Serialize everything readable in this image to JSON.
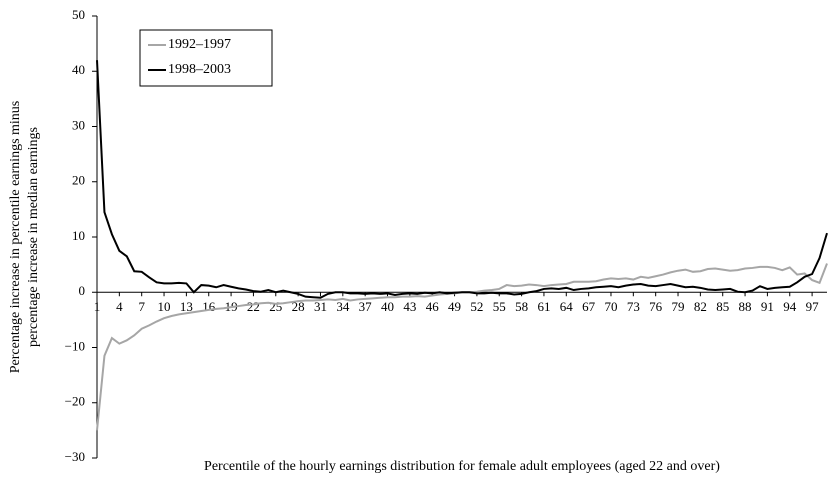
{
  "chart_data": {
    "type": "line",
    "ylabel": [
      "Percentage increase in percentile earnings minus",
      "percentage increase in median earnings"
    ],
    "xlabel": "Percentile of the hourly earnings distribution for female adult employees (aged 22 and over)",
    "x": [
      1,
      2,
      3,
      4,
      5,
      6,
      7,
      8,
      9,
      10,
      11,
      12,
      13,
      14,
      15,
      16,
      17,
      18,
      19,
      20,
      21,
      22,
      23,
      24,
      25,
      26,
      27,
      28,
      29,
      30,
      31,
      32,
      33,
      34,
      35,
      36,
      37,
      38,
      39,
      40,
      41,
      42,
      43,
      44,
      45,
      46,
      47,
      48,
      49,
      50,
      51,
      52,
      53,
      54,
      55,
      56,
      57,
      58,
      59,
      60,
      61,
      62,
      63,
      64,
      65,
      66,
      67,
      68,
      69,
      70,
      71,
      72,
      73,
      74,
      75,
      76,
      77,
      78,
      79,
      80,
      81,
      82,
      83,
      84,
      85,
      86,
      87,
      88,
      89,
      90,
      91,
      92,
      93,
      94,
      95,
      96,
      97,
      98,
      99
    ],
    "xlim": [
      1,
      99
    ],
    "xticks": [
      1,
      4,
      7,
      10,
      13,
      16,
      19,
      22,
      25,
      28,
      31,
      34,
      37,
      40,
      43,
      46,
      49,
      52,
      55,
      58,
      61,
      64,
      67,
      70,
      73,
      76,
      79,
      82,
      85,
      88,
      91,
      94,
      97
    ],
    "ylim": [
      -30,
      50
    ],
    "yticks": [
      {
        "value": -30,
        "label": "−30"
      },
      {
        "value": -20,
        "label": "−20"
      },
      {
        "value": -10,
        "label": "−10"
      },
      0,
      10,
      20,
      30,
      40,
      50
    ],
    "legend": "upper left",
    "series": [
      {
        "name": "1992–1997",
        "color": "#a6a6a6",
        "values": [
          -25,
          -11.5,
          -8.3,
          -9.3,
          -8.7,
          -7.8,
          -6.6,
          -6,
          -5.3,
          -4.7,
          -4.3,
          -4,
          -3.8,
          -3.6,
          -3.4,
          -3.2,
          -3,
          -2.9,
          -2.7,
          -2.5,
          -2.3,
          -2.2,
          -2,
          -1.9,
          -2.1,
          -2,
          -1.8,
          -1.6,
          -1.5,
          -1.5,
          -1.4,
          -1.3,
          -1.4,
          -1.2,
          -1.5,
          -1.3,
          -1.2,
          -1.1,
          -1,
          -0.9,
          -0.9,
          -0.8,
          -0.8,
          -0.7,
          -0.8,
          -0.6,
          -0.4,
          -0.3,
          -0.2,
          0,
          0,
          0.1,
          0.3,
          0.4,
          0.6,
          1.3,
          1.1,
          1.2,
          1.4,
          1.3,
          1.1,
          1.3,
          1.4,
          1.5,
          1.9,
          1.9,
          1.9,
          2,
          2.3,
          2.5,
          2.4,
          2.5,
          2.3,
          2.8,
          2.6,
          2.9,
          3.2,
          3.6,
          3.9,
          4.1,
          3.7,
          3.8,
          4.2,
          4.3,
          4.1,
          3.9,
          4,
          4.3,
          4.4,
          4.6,
          4.6,
          4.4,
          4,
          4.5,
          3.2,
          3.4,
          2.2,
          1.7,
          5.2
        ]
      },
      {
        "name": "1998–2003",
        "color": "#000000",
        "values": [
          42,
          14.5,
          10.5,
          7.5,
          6.5,
          3.8,
          3.7,
          2.7,
          1.8,
          1.6,
          1.6,
          1.7,
          1.6,
          0,
          1.3,
          1.2,
          0.9,
          1.3,
          1,
          0.7,
          0.5,
          0.2,
          0.1,
          0.4,
          0,
          0.3,
          0,
          -0.3,
          -0.8,
          -0.9,
          -1,
          -0.3,
          0,
          0,
          -0.2,
          -0.2,
          -0.3,
          -0.2,
          -0.3,
          -0.2,
          -0.5,
          -0.3,
          -0.2,
          -0.3,
          -0.1,
          -0.2,
          0,
          -0.2,
          -0.1,
          0,
          0,
          -0.2,
          -0.2,
          -0.1,
          -0.2,
          -0.2,
          -0.4,
          -0.3,
          0,
          0.2,
          0.6,
          0.7,
          0.6,
          0.8,
          0.4,
          0.6,
          0.7,
          0.9,
          1,
          1.1,
          0.9,
          1.2,
          1.4,
          1.5,
          1.2,
          1.1,
          1.3,
          1.5,
          1.2,
          0.9,
          1,
          0.8,
          0.5,
          0.4,
          0.5,
          0.6,
          0.1,
          0,
          0.3,
          1.1,
          0.6,
          0.8,
          0.9,
          1,
          1.8,
          2.8,
          3.3,
          6.2,
          10.7
        ]
      }
    ]
  }
}
